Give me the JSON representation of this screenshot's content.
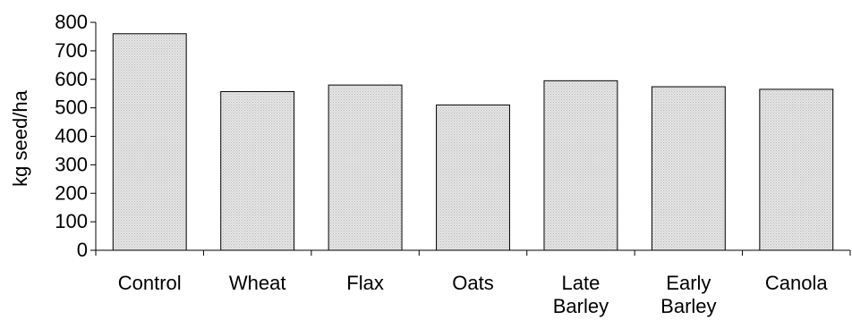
{
  "chart_data": {
    "type": "bar",
    "title": "",
    "xlabel": "",
    "ylabel": "kg seed/ha",
    "ylim": [
      0,
      800
    ],
    "yticks": [
      0,
      100,
      200,
      300,
      400,
      500,
      600,
      700,
      800
    ],
    "grid": false,
    "categories": [
      [
        "Control"
      ],
      [
        "Wheat"
      ],
      [
        "Flax"
      ],
      [
        "Oats"
      ],
      [
        "Late",
        "Barley"
      ],
      [
        "Early",
        "Barley"
      ],
      [
        "Canola"
      ]
    ],
    "values": [
      760,
      557,
      580,
      510,
      595,
      574,
      565
    ],
    "colors": {
      "bar_fill": "#d9d9d9",
      "bar_stroke": "#000000",
      "axis": "#000000"
    }
  }
}
